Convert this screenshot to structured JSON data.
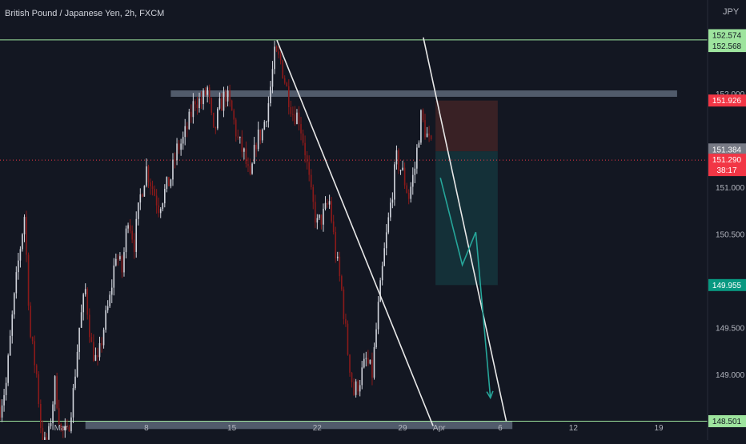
{
  "header": {
    "title": "British Pound / Japanese Yen, 2h, FXCM",
    "currency_label": "JPY"
  },
  "colors": {
    "background": "#131722",
    "up_candle": "#d1d4dc",
    "down_candle": "#8b1a1a",
    "axis_text": "#b2b5be",
    "level_green": "#9ee49e",
    "zone_grey": "#5d6778",
    "trend_line": "#e8e8e8",
    "stop_zone": "#3b2226",
    "target_zone": "#14323a",
    "arrow_green": "#26a69a",
    "price_red": "#f23645",
    "price_green": "#089981",
    "last_price_grey": "#787b86"
  },
  "chart_data": {
    "type": "candlestick",
    "title": "British Pound / Japanese Yen, 2h, FXCM",
    "x_axis": {
      "tick_labels": [
        "Mar",
        "8",
        "15",
        "22",
        "29",
        "Apr",
        "6",
        "12",
        "19"
      ],
      "tick_days": [
        1,
        8,
        15,
        22,
        29,
        32,
        37,
        43,
        50
      ],
      "range_days": [
        -4,
        54
      ]
    },
    "y_axis": {
      "tick_labels": [
        "152.000",
        "151.000",
        "150.500",
        "149.500",
        "149.000"
      ],
      "tick_values": [
        152.0,
        151.0,
        150.5,
        149.5,
        149.0
      ],
      "range": [
        148.3,
        153.0
      ]
    },
    "price_path": [
      [
        -4,
        148.65
      ],
      [
        -3.5,
        148.9
      ],
      [
        -3,
        149.6
      ],
      [
        -2.5,
        150.2
      ],
      [
        -2,
        150.7
      ],
      [
        -1.5,
        149.4
      ],
      [
        -1,
        149.0
      ],
      [
        -0.5,
        148.2
      ],
      [
        0,
        148.35
      ],
      [
        0.5,
        148.9
      ],
      [
        1,
        148.4
      ],
      [
        1.5,
        148.35
      ],
      [
        2,
        148.8
      ],
      [
        2.5,
        149.5
      ],
      [
        3,
        149.9
      ],
      [
        3.5,
        149.3
      ],
      [
        4,
        149.1
      ],
      [
        4.5,
        149.5
      ],
      [
        5,
        149.8
      ],
      [
        5.5,
        150.3
      ],
      [
        6,
        150.1
      ],
      [
        6.5,
        150.7
      ],
      [
        7,
        150.4
      ],
      [
        7.5,
        150.9
      ],
      [
        8,
        151.2
      ],
      [
        8.5,
        151.0
      ],
      [
        9,
        150.8
      ],
      [
        9.5,
        150.95
      ],
      [
        10,
        151.1
      ],
      [
        10.5,
        151.4
      ],
      [
        11,
        151.5
      ],
      [
        11.5,
        151.7
      ],
      [
        12,
        151.95
      ],
      [
        12.5,
        151.9
      ],
      [
        13,
        152.05
      ],
      [
        13.5,
        151.55
      ],
      [
        14,
        151.85
      ],
      [
        14.5,
        152.0
      ],
      [
        15,
        151.8
      ],
      [
        15.5,
        151.5
      ],
      [
        16,
        151.35
      ],
      [
        16.5,
        151.05
      ],
      [
        17,
        151.5
      ],
      [
        17.5,
        151.6
      ],
      [
        18,
        151.9
      ],
      [
        18.5,
        152.4
      ],
      [
        19,
        152.35
      ],
      [
        19.5,
        152.05
      ],
      [
        20,
        151.8
      ],
      [
        20.5,
        151.75
      ],
      [
        21,
        151.4
      ],
      [
        21.5,
        150.9
      ],
      [
        22,
        150.6
      ],
      [
        22.5,
        150.7
      ],
      [
        23,
        150.85
      ],
      [
        23.5,
        150.3
      ],
      [
        24,
        149.9
      ],
      [
        24.5,
        149.25
      ],
      [
        25,
        148.8
      ],
      [
        25.5,
        148.95
      ],
      [
        26,
        149.15
      ],
      [
        26.5,
        149.0
      ],
      [
        27,
        149.7
      ],
      [
        27.5,
        150.3
      ],
      [
        28,
        150.8
      ],
      [
        28.5,
        151.3
      ],
      [
        29,
        151.15
      ],
      [
        29.5,
        150.9
      ],
      [
        30,
        151.2
      ],
      [
        30.5,
        151.75
      ],
      [
        31,
        151.55
      ],
      [
        31.5,
        151.35
      ]
    ],
    "levels": [
      {
        "price": 152.574,
        "label": "152.574",
        "color": "#9ee49e"
      },
      {
        "price": 152.568,
        "label": "152.568",
        "color": "#9ee49e"
      },
      {
        "price": 151.926,
        "label": "151.926",
        "color": "#f23645"
      },
      {
        "price": 151.384,
        "label": "151.384",
        "color": "#787b86"
      },
      {
        "price": 151.29,
        "label": "151.290",
        "color": "#f23645",
        "countdown": "38:17"
      },
      {
        "price": 149.955,
        "label": "149.955",
        "color": "#089981"
      },
      {
        "price": 148.501,
        "label": "148.501",
        "color": "#9ee49e"
      }
    ],
    "resistance_zone": {
      "x_start": 10,
      "x_end": 51.5,
      "price": 152.0
    },
    "support_zone": {
      "x_start": 3,
      "x_end": 38,
      "price": 148.46
    },
    "trendlines": [
      {
        "from": [
          18.7,
          152.57
        ],
        "to": [
          31.5,
          148.45
        ]
      },
      {
        "from": [
          30.7,
          152.6
        ],
        "to": [
          37.5,
          148.5
        ]
      }
    ],
    "position": {
      "x_start": 31.7,
      "x_end": 36.8,
      "stop": 151.926,
      "entry": 151.384,
      "target": 149.955
    },
    "projection_arrow": [
      [
        32.1,
        151.1
      ],
      [
        33.9,
        150.17
      ],
      [
        35.0,
        150.52
      ],
      [
        36.2,
        148.75
      ]
    ]
  }
}
